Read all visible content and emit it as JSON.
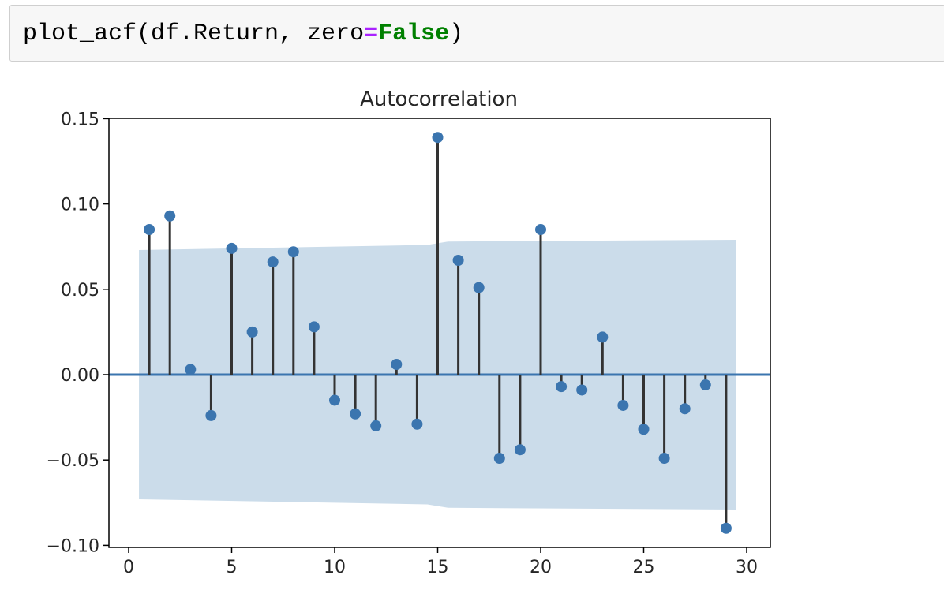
{
  "code_cell": {
    "tokens": [
      {
        "text": "plot_acf(df.Return, zero",
        "kind": "plain"
      },
      {
        "text": "=",
        "kind": "operator"
      },
      {
        "text": "False",
        "kind": "keyword"
      },
      {
        "text": ")",
        "kind": "plain"
      }
    ]
  },
  "chart_data": {
    "type": "stem",
    "title": "Autocorrelation",
    "xlabel": "",
    "ylabel": "",
    "xlim": [
      -1,
      31
    ],
    "ylim": [
      -0.1,
      0.15
    ],
    "x_ticks": [
      0,
      5,
      10,
      15,
      20,
      25,
      30
    ],
    "y_ticks": [
      0.15,
      0.1,
      0.05,
      0.0,
      -0.05,
      -0.1
    ],
    "y_tick_labels": [
      "0.15",
      "0.10",
      "0.05",
      "0.00",
      "−0.05",
      "−0.10"
    ],
    "grid": false,
    "x": [
      1,
      2,
      3,
      4,
      5,
      6,
      7,
      8,
      9,
      10,
      11,
      12,
      13,
      14,
      15,
      16,
      17,
      18,
      19,
      20,
      21,
      22,
      23,
      24,
      25,
      26,
      27,
      28,
      29
    ],
    "values": [
      0.085,
      0.093,
      0.003,
      -0.024,
      0.074,
      0.025,
      0.066,
      0.072,
      0.028,
      -0.015,
      -0.023,
      -0.03,
      0.006,
      -0.029,
      0.139,
      0.067,
      0.051,
      -0.049,
      -0.044,
      0.085,
      -0.007,
      -0.009,
      0.022,
      -0.018,
      -0.032,
      -0.049,
      -0.02,
      -0.006,
      -0.09
    ],
    "confidence_band": {
      "x_start": 0.5,
      "x_end": 29.5,
      "upper_start": 0.073,
      "upper_end": 0.079,
      "lower_start": -0.073,
      "lower_end": -0.079
    },
    "colors": {
      "stem": "#333333",
      "marker": "#3b75af",
      "zero_line": "#3b75af",
      "band": "#cbdcea",
      "axes": "#000000"
    }
  }
}
